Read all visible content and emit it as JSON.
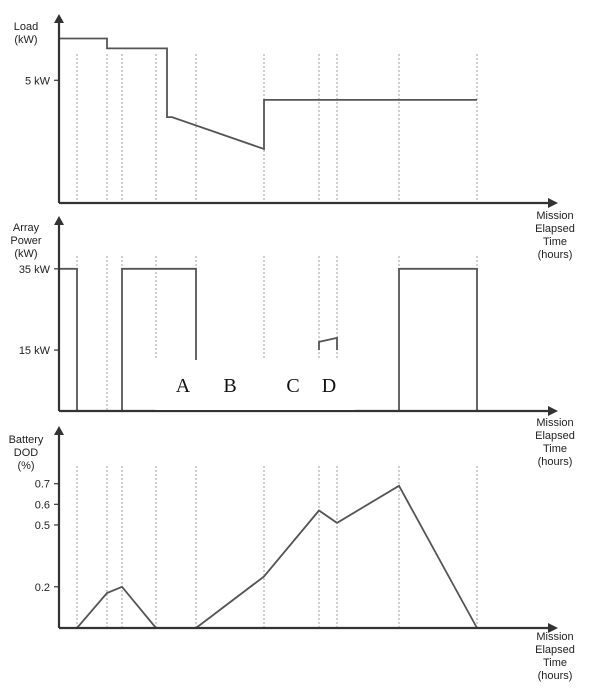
{
  "colors": {
    "axis": "#333333",
    "line": "#555555",
    "guide": "#888888",
    "background": "#ffffff"
  },
  "markers": [
    "A",
    "B",
    "C",
    "D"
  ],
  "chart_data": [
    {
      "type": "line",
      "title": "",
      "ylabel": [
        "Load",
        "(kW)"
      ],
      "xlabel": [
        "Mission",
        "Elapsed",
        "Time",
        "(hours)"
      ],
      "y_ticks": [
        {
          "value": 5,
          "label": "5 kW"
        }
      ],
      "ylim": [
        0,
        7.7
      ],
      "xlim": [
        0,
        475
      ],
      "series": [
        {
          "x": [
            0,
            0,
            48,
            48,
            108,
            108,
            113,
            113,
            205,
            205,
            418
          ],
          "y": [
            0,
            6.7,
            6.7,
            6.3,
            6.3,
            3.5,
            3.5,
            3.5,
            2.2,
            4.2,
            4.2
          ]
        }
      ],
      "guides": [
        18,
        48,
        63,
        97,
        137,
        205,
        260,
        278,
        340,
        418
      ]
    },
    {
      "type": "line",
      "title": "",
      "ylabel": [
        "Array",
        "Power",
        "(kW)"
      ],
      "xlabel": [
        "Mission",
        "Elapsed",
        "Time",
        "(hours)"
      ],
      "y_ticks": [
        {
          "value": 35,
          "label": "35 kW"
        },
        {
          "value": 15,
          "label": "15 kW"
        }
      ],
      "ylim": [
        0,
        48
      ],
      "xlim": [
        0,
        475
      ],
      "series": [
        {
          "x": [
            0,
            18,
            18
          ],
          "y": [
            35,
            35,
            0
          ]
        },
        {
          "x": [
            63,
            63,
            137,
            137
          ],
          "y": [
            0,
            35,
            35,
            0
          ]
        },
        {
          "x": [
            260,
            260,
            278,
            278
          ],
          "y": [
            15,
            17,
            18,
            15
          ]
        },
        {
          "x": [
            340,
            340,
            418,
            418
          ],
          "y": [
            0,
            35,
            35,
            0
          ]
        }
      ],
      "guides": [
        18,
        48,
        63,
        97,
        137,
        205,
        260,
        278,
        340,
        418
      ]
    },
    {
      "type": "line",
      "title": "",
      "ylabel": [
        "Battery",
        "DOD",
        "(%)"
      ],
      "xlabel": [
        "Mission",
        "Elapsed",
        "Time",
        "(hours)"
      ],
      "y_ticks": [
        {
          "value": 0.7,
          "label": "0.7"
        },
        {
          "value": 0.6,
          "label": "0.6"
        },
        {
          "value": 0.5,
          "label": "0.5"
        },
        {
          "value": 0.2,
          "label": "0.2"
        }
      ],
      "ylim": [
        0,
        0.98
      ],
      "xlim": [
        0,
        475
      ],
      "series": [
        {
          "x": [
            0,
            18,
            48,
            63,
            97
          ],
          "y": [
            0,
            0,
            0.17,
            0.2,
            0
          ]
        },
        {
          "x": [
            137,
            205,
            260,
            278,
            340,
            418
          ],
          "y": [
            0,
            0.25,
            0.57,
            0.51,
            0.69,
            0
          ]
        }
      ],
      "guides": [
        18,
        48,
        63,
        97,
        137,
        205,
        260,
        278,
        340,
        418
      ]
    }
  ]
}
